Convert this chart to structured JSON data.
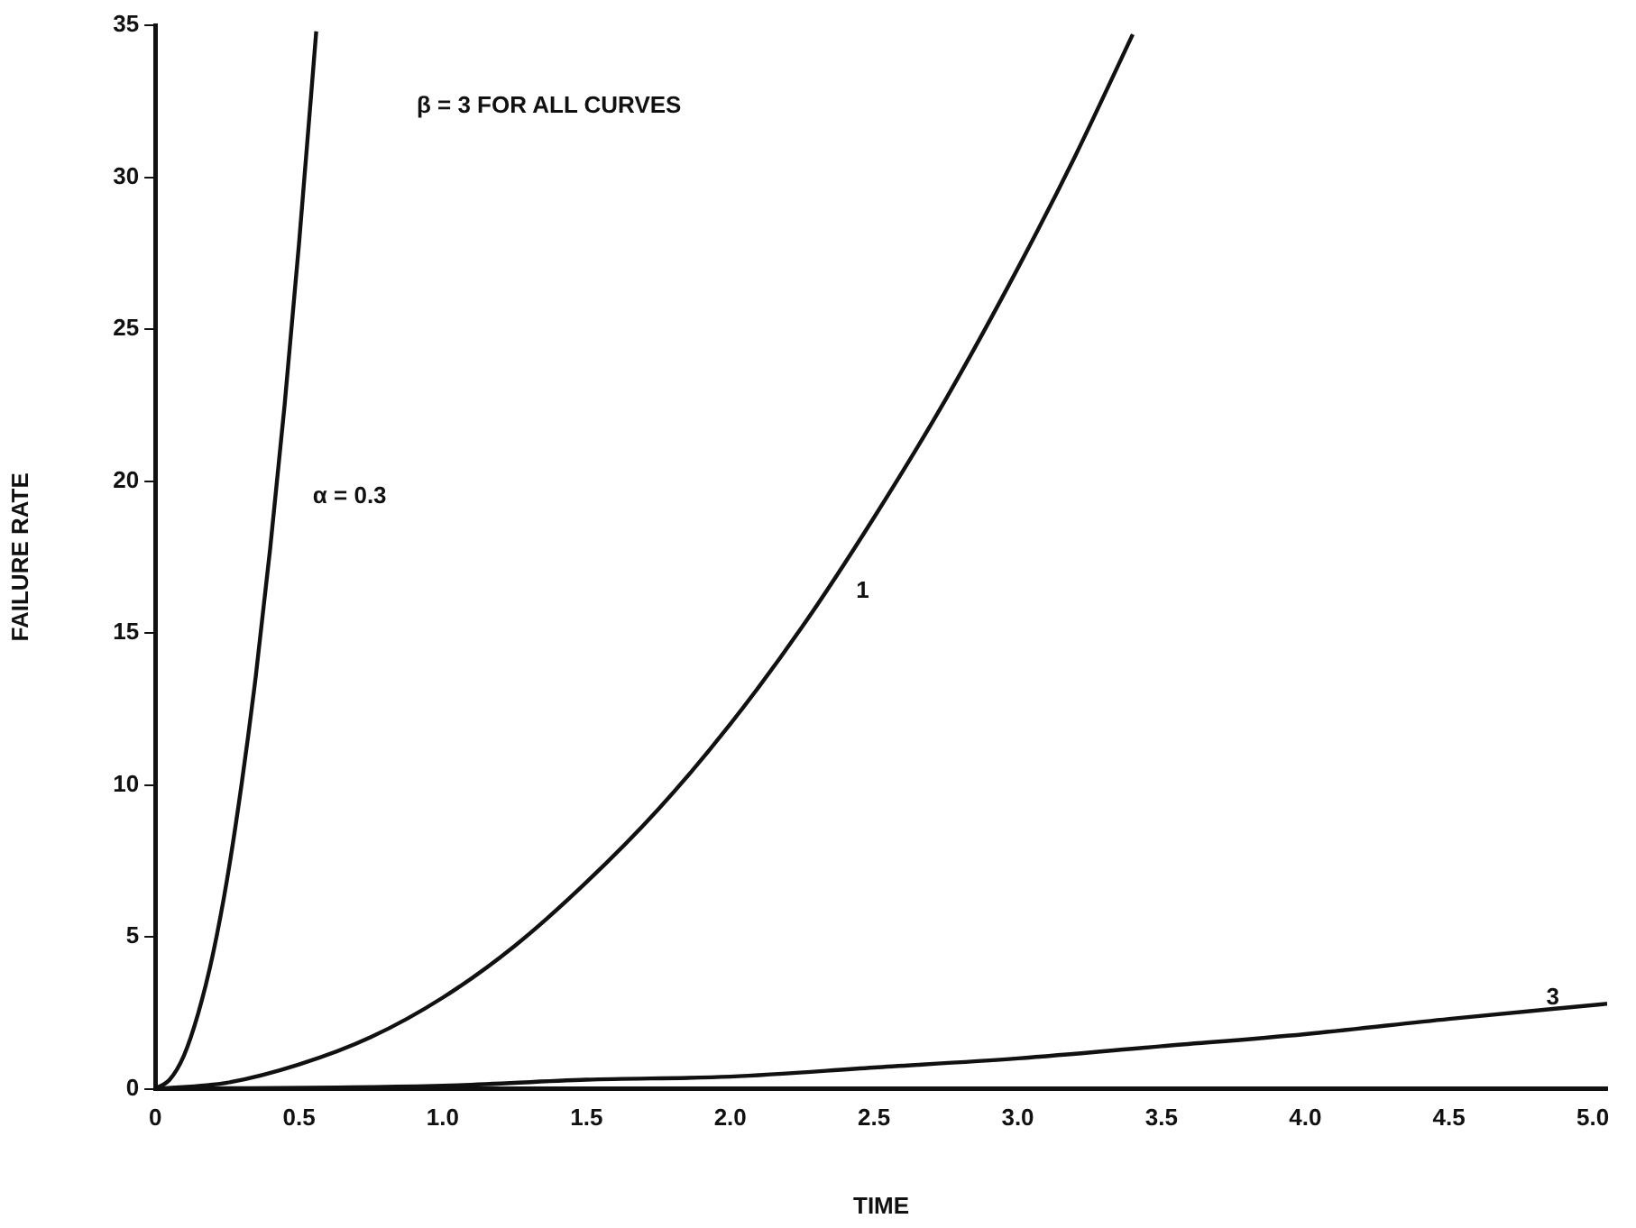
{
  "chart_data": {
    "type": "line",
    "xlabel": "TIME",
    "ylabel": "FAILURE RATE",
    "xlim": [
      0,
      5.05
    ],
    "ylim": [
      0,
      35
    ],
    "xticks": [
      0,
      0.5,
      {
        "value": 1,
        "label": "1.0"
      },
      1.5,
      {
        "value": 2,
        "label": "2.0"
      },
      2.5,
      {
        "value": 3,
        "label": "3.0"
      },
      3.5,
      {
        "value": 4,
        "label": "4.0"
      },
      4.5,
      {
        "value": 5,
        "label": "5.0"
      }
    ],
    "yticks": [
      0,
      5,
      10,
      15,
      20,
      25,
      30,
      35
    ],
    "grid": false,
    "legend": false,
    "marker": "none",
    "line_style": "solid",
    "series": [
      {
        "color": "#111111",
        "x": [
          0,
          0.05,
          0.1,
          0.15,
          0.2,
          0.25,
          0.3,
          0.35,
          0.4,
          0.45,
          0.5,
          0.56
        ],
        "values": [
          0,
          0.3,
          1.1,
          2.5,
          4.4,
          6.9,
          10,
          13.6,
          17.8,
          22.5,
          27.8,
          34.8
        ]
      },
      {
        "color": "#111111",
        "x": [
          0,
          0.25,
          0.5,
          0.75,
          1.0,
          1.25,
          1.5,
          1.75,
          2.0,
          2.25,
          2.5,
          2.75,
          3.0,
          3.2,
          3.4
        ],
        "values": [
          0,
          0.2,
          0.8,
          1.7,
          3,
          4.7,
          6.8,
          9.2,
          12,
          15.2,
          18.8,
          22.7,
          27,
          30.7,
          34.7
        ]
      },
      {
        "color": "#111111",
        "x": [
          0,
          1,
          1.5,
          2,
          2.5,
          3,
          3.5,
          4,
          4.5,
          5.05
        ],
        "values": [
          0,
          0.1,
          0.3,
          0.4,
          0.7,
          1,
          1.4,
          1.8,
          2.3,
          2.8
        ]
      }
    ],
    "annotations": [
      "β = 3 FOR ALL CURVES",
      {
        "text": "α = 0.3",
        "x": 0.41,
        "y": 19
      },
      {
        "text": "1",
        "x": 2.3,
        "y": 15.9
      },
      {
        "text": "3",
        "x": 4.7,
        "y": 2.5
      }
    ]
  }
}
